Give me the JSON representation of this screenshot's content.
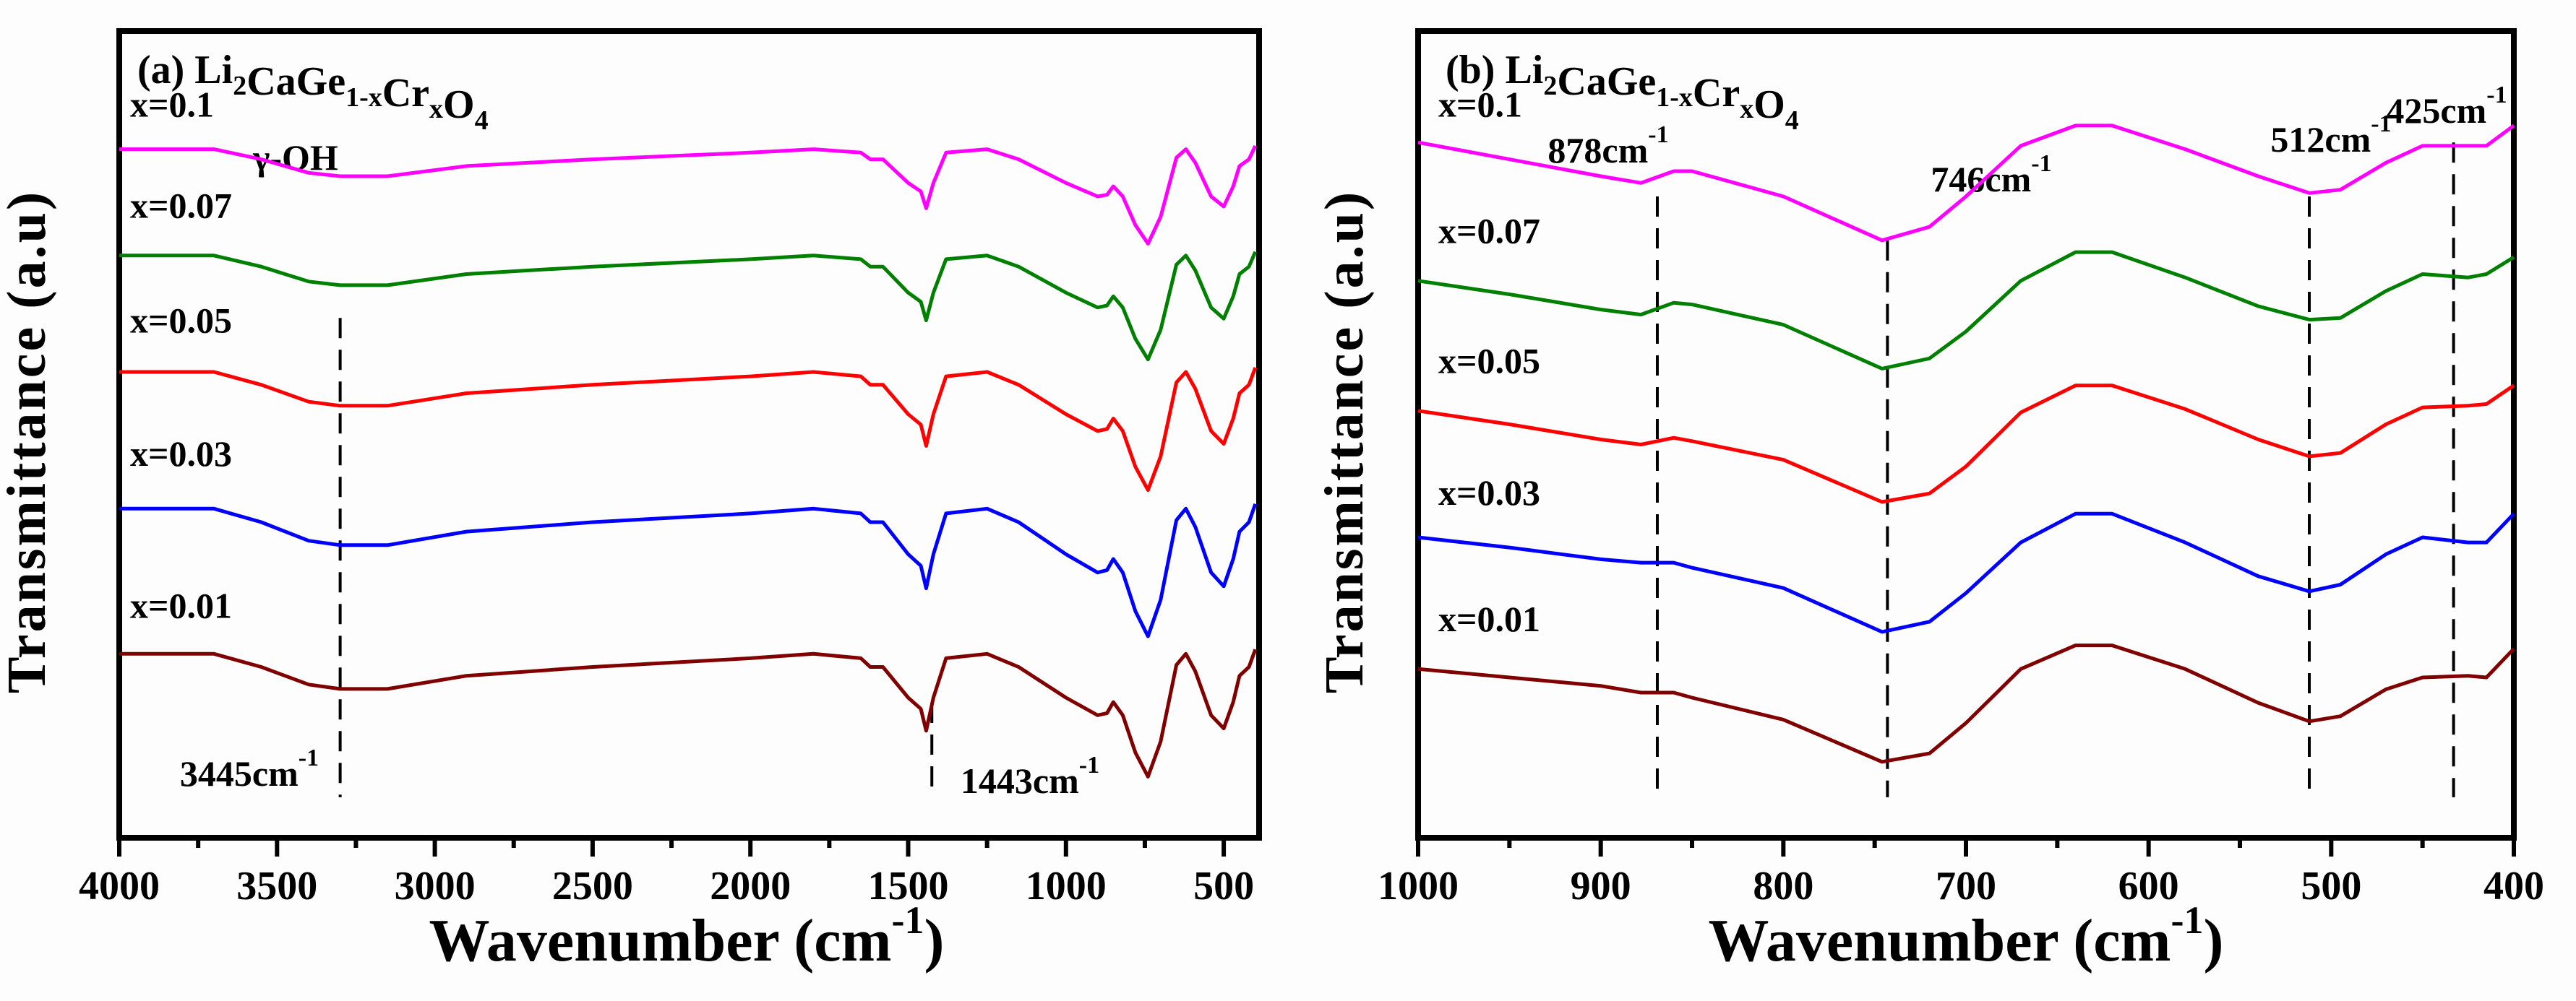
{
  "chart_data": [
    {
      "type": "line",
      "panel_label": "(a)",
      "title_formula": [
        {
          "text": "Li",
          "sub": false
        },
        {
          "text": "2",
          "sub": true
        },
        {
          "text": "CaGe",
          "sub": false
        },
        {
          "text": "1-x",
          "sub": true
        },
        {
          "text": "Cr",
          "sub": false
        },
        {
          "text": "x",
          "sub": true
        },
        {
          "text": "O",
          "sub": false
        },
        {
          "text": "4",
          "sub": true
        }
      ],
      "xlabel": "Wavenumber (cm",
      "xlabel_sup": "-1",
      "xlabel_close": ")",
      "ylabel": "Transmittance (a.u)",
      "xlim": [
        4000,
        388
      ],
      "ylim": [
        0,
        239
      ],
      "xticks": [
        4000,
        3500,
        3000,
        2500,
        2000,
        1500,
        1000,
        500
      ],
      "xtick_labels": [
        "4000",
        "3500",
        "3000",
        "2500",
        "2000",
        "1500",
        "1000",
        "500"
      ],
      "grid": false,
      "x": [
        4000,
        3700,
        3550,
        3400,
        3300,
        3150,
        2900,
        2500,
        2000,
        1800,
        1650,
        1620,
        1580,
        1500,
        1460,
        1443,
        1420,
        1380,
        1250,
        1150,
        1000,
        900,
        870,
        850,
        820,
        780,
        740,
        700,
        650,
        620,
        590,
        540,
        500,
        470,
        450,
        420,
        400
      ],
      "series": [
        {
          "name": "x=0.1",
          "color": "#ff00ff",
          "values": [
            204,
            204,
            201,
            197,
            196,
            196,
            199,
            201,
            203,
            204,
            203,
            201,
            201,
            194,
            191.5,
            186.5,
            194,
            203,
            204,
            201,
            194,
            190,
            190.5,
            193,
            190,
            181.5,
            176,
            184,
            201.5,
            204,
            200,
            190,
            187,
            193,
            199,
            201,
            205
          ]
        },
        {
          "name": "x=0.07",
          "color": "#008000",
          "values": [
            172.5,
            172.5,
            169.2,
            164.8,
            163.7,
            163.7,
            167,
            169.2,
            171.4,
            172.5,
            171.4,
            169.2,
            169.2,
            161.5,
            158.8,
            153.3,
            161.5,
            171.4,
            172.5,
            169.2,
            161.5,
            157.1,
            157.7,
            160.4,
            157.1,
            147.8,
            141.7,
            150.5,
            169.8,
            172.5,
            168.1,
            157.1,
            153.8,
            160.4,
            167,
            169.2,
            173.6
          ]
        },
        {
          "name": "x=0.05",
          "color": "#ff0000",
          "values": [
            138,
            138,
            134.2,
            129.2,
            128,
            128,
            131.7,
            134.2,
            136.7,
            138,
            136.7,
            134.2,
            134.2,
            125.5,
            122.4,
            116.1,
            125.5,
            136.7,
            138,
            134.2,
            125.5,
            120.5,
            121.1,
            124.2,
            120.5,
            109.9,
            103,
            113,
            134.9,
            138,
            133,
            120.5,
            116.7,
            124.2,
            131.7,
            134.2,
            139.3
          ]
        },
        {
          "name": "x=0.03",
          "color": "#0000ff",
          "values": [
            97.5,
            97.5,
            93.5,
            88,
            86.7,
            86.7,
            90.7,
            93.5,
            96.1,
            97.5,
            96.1,
            93.5,
            93.5,
            84,
            80.6,
            73.9,
            84,
            96.1,
            97.5,
            93.5,
            84,
            78.6,
            79.3,
            82.6,
            78.6,
            67.1,
            59.7,
            70.5,
            94.1,
            97.5,
            92.1,
            78.6,
            74.5,
            82.6,
            90.7,
            93.5,
            98.9
          ]
        },
        {
          "name": "x=0.01",
          "color": "#800000",
          "values": [
            54.5,
            54.5,
            50.6,
            45.4,
            44.1,
            44.1,
            48,
            50.6,
            53.2,
            54.5,
            53.2,
            50.6,
            50.6,
            41.5,
            38.2,
            31.7,
            41.5,
            53.2,
            54.5,
            50.6,
            41.5,
            36.3,
            36.9,
            40.2,
            36.3,
            25.2,
            18.1,
            28.5,
            51.2,
            54.5,
            49.3,
            36.3,
            32.4,
            40.2,
            48,
            50.6,
            55.8
          ]
        }
      ],
      "markers": [
        {
          "x": 3300,
          "label": "3445cm",
          "sup": "-1",
          "extra_label": "γ-OH"
        },
        {
          "x": 1425,
          "label": "1443cm",
          "sup": "-1"
        }
      ]
    },
    {
      "type": "line",
      "panel_label": "(b)",
      "title_formula": [
        {
          "text": "Li",
          "sub": false
        },
        {
          "text": "2",
          "sub": true
        },
        {
          "text": "CaGe",
          "sub": false
        },
        {
          "text": "1-x",
          "sub": true
        },
        {
          "text": "Cr",
          "sub": false
        },
        {
          "text": "x",
          "sub": true
        },
        {
          "text": "O",
          "sub": false
        },
        {
          "text": "4",
          "sub": true
        }
      ],
      "xlabel": "Wavenumber (cm",
      "xlabel_sup": "-1",
      "xlabel_close": ")",
      "ylabel": "Transmittance (a.u)",
      "xlim": [
        1000,
        400
      ],
      "ylim": [
        0,
        239
      ],
      "xticks": [
        1000,
        900,
        800,
        700,
        600,
        500,
        400
      ],
      "xtick_labels": [
        "1000",
        "900",
        "800",
        "700",
        "600",
        "500",
        "400"
      ],
      "grid": false,
      "x": [
        1000,
        950,
        900,
        878,
        860,
        850,
        800,
        746,
        720,
        700,
        670,
        640,
        620,
        580,
        540,
        512,
        495,
        470,
        450,
        425,
        415,
        400
      ],
      "series": [
        {
          "name": "x=0.1",
          "color": "#ff00ff",
          "values": [
            206,
            201,
            196,
            194,
            197.5,
            197.5,
            190,
            177,
            181,
            190,
            205,
            211,
            211,
            204,
            196,
            191,
            192,
            200,
            205,
            205,
            205,
            211
          ]
        },
        {
          "name": "x=0.07",
          "color": "#008000",
          "values": [
            165,
            161,
            156.5,
            155,
            158.5,
            158,
            152,
            139,
            142,
            150,
            165,
            173.5,
            173.5,
            166,
            157.5,
            153.5,
            154,
            162,
            167,
            166,
            167,
            172
          ]
        },
        {
          "name": "x=0.05",
          "color": "#ff0000",
          "values": [
            126.5,
            122.5,
            118,
            116.5,
            118.5,
            117.5,
            112,
            99.5,
            102,
            110,
            126,
            134,
            134,
            127,
            118,
            113,
            114,
            122.5,
            127.5,
            128,
            128.5,
            134
          ]
        },
        {
          "name": "x=0.03",
          "color": "#0000ff",
          "values": [
            89,
            86,
            82.5,
            81.5,
            81.5,
            80,
            74,
            61,
            64,
            72.5,
            87.5,
            96,
            96,
            87.5,
            77.5,
            73,
            75,
            84,
            89,
            87.5,
            87.5,
            96
          ]
        },
        {
          "name": "x=0.01",
          "color": "#800000",
          "values": [
            50,
            47.5,
            45,
            43,
            43,
            41.5,
            35,
            22.5,
            25,
            34,
            50,
            57,
            57,
            50,
            40,
            34.5,
            36,
            44,
            47.5,
            48,
            47.5,
            56
          ]
        }
      ],
      "markers": [
        {
          "x": 869,
          "label": "878cm",
          "sup": "-1"
        },
        {
          "x": 743,
          "label": "746cm",
          "sup": "-1"
        },
        {
          "x": 512,
          "label": "512cm",
          "sup": "-1"
        },
        {
          "x": 433,
          "label": "425cm",
          "sup": "-1"
        }
      ]
    }
  ]
}
